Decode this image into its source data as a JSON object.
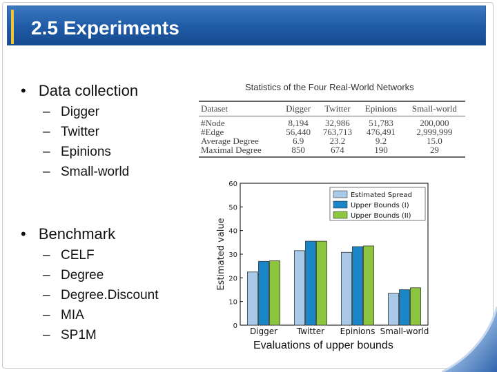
{
  "slide": {
    "title": "2.5 Experiments",
    "bullets": [
      {
        "label": "Data collection",
        "items": [
          "Digger",
          "Twitter",
          "Epinions",
          "Small-world"
        ]
      },
      {
        "label": "Benchmark",
        "items": [
          "CELF",
          "Degree",
          "Degree.Discount",
          "MIA",
          "SP1M"
        ]
      }
    ],
    "bullet_glyph": "•",
    "dash_glyph": "–"
  },
  "table": {
    "title": "Statistics of the Four Real-World Networks",
    "headers": [
      "Dataset",
      "Digger",
      "Twitter",
      "Epinions",
      "Small-world"
    ],
    "rows": [
      [
        "#Node",
        "8,194",
        "32,986",
        "51,783",
        "200,000"
      ],
      [
        "#Edge",
        "56,440",
        "763,713",
        "476,491",
        "2,999,999"
      ],
      [
        "Average Degree",
        "6.9",
        "23.2",
        "9.2",
        "15.0"
      ],
      [
        "Maximal Degree",
        "850",
        "674",
        "190",
        "29"
      ]
    ]
  },
  "chart_data": {
    "type": "bar",
    "categories": [
      "Digger",
      "Twitter",
      "Epinions",
      "Small-world"
    ],
    "series": [
      {
        "name": "Estimated Spread",
        "values": [
          22.5,
          31.5,
          30.8,
          13.5
        ],
        "color": "#a9c9e8"
      },
      {
        "name": "Upper Bounds (I)",
        "values": [
          27.0,
          35.5,
          33.2,
          15.0
        ],
        "color": "#1a86c8"
      },
      {
        "name": "Upper Bounds (II)",
        "values": [
          27.2,
          35.5,
          33.5,
          15.8
        ],
        "color": "#8cc63f"
      }
    ],
    "ylabel": "Estimated value",
    "ylim": [
      0,
      60
    ],
    "yticks": [
      0,
      10,
      20,
      30,
      40,
      50,
      60
    ],
    "legend": "top-right",
    "caption": "Evaluations of upper bounds"
  },
  "colors": {
    "title_bar": "#1f5aa6",
    "title_stripe": "#f4c430"
  }
}
